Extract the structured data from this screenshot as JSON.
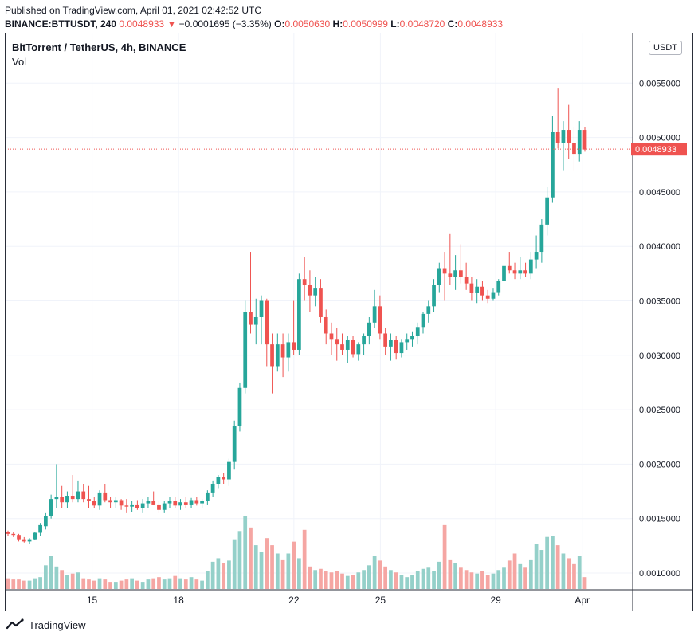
{
  "header": {
    "published": "Published on TradingView.com, April 01, 2021 02:42:52 UTC",
    "symbol": "BINANCE:BTTUSDT, 240",
    "last": "0.0048933",
    "change": "−0.0001695 (−3.35%)",
    "o_label": "O:",
    "o": "0.0050630",
    "h_label": "H:",
    "h": "0.0050999",
    "l_label": "L:",
    "l": "0.0048720",
    "c_label": "C:",
    "c": "0.0048933"
  },
  "pane": {
    "title": "BitTorrent / TetherUS, 4h, BINANCE",
    "volume_label": "Vol",
    "currency_button": "USDT"
  },
  "footer": {
    "brand": "TradingView"
  },
  "colors": {
    "up": "#26a69a",
    "down": "#ef5350",
    "vol_up": "#94d0c9",
    "vol_down": "#f5a6a3",
    "grid": "#f0f3fa"
  },
  "chart_data": {
    "type": "candlestick",
    "title": "BitTorrent / TetherUS, 4h, BINANCE",
    "y_ticks": [
      "0.0010000",
      "0.0015000",
      "0.0020000",
      "0.0025000",
      "0.0030000",
      "0.0035000",
      "0.0040000",
      "0.0045000",
      "0.0050000",
      "0.0055000"
    ],
    "ylim": [
      0.00088,
      0.00578
    ],
    "x_ticks": [
      {
        "label": "15",
        "at": 15
      },
      {
        "label": "18",
        "at": 18
      },
      {
        "label": "22",
        "at": 22
      },
      {
        "label": "25",
        "at": 25
      },
      {
        "label": "29",
        "at": 29
      },
      {
        "label": "Apr",
        "at": 32
      }
    ],
    "x_range": [
      12.0,
      33.75
    ],
    "last_price": "0.0048933",
    "candles": [
      [
        0.00138,
        0.00139,
        0.00134,
        0.00136,
        0.9
      ],
      [
        0.00136,
        0.00138,
        0.00133,
        0.00135,
        0.8
      ],
      [
        0.00135,
        0.00136,
        0.00129,
        0.00131,
        0.8
      ],
      [
        0.00131,
        0.00133,
        0.00128,
        0.00129,
        0.7
      ],
      [
        0.00129,
        0.00132,
        0.00127,
        0.00131,
        0.7
      ],
      [
        0.00131,
        0.00138,
        0.0013,
        0.00137,
        0.9
      ],
      [
        0.00137,
        0.00146,
        0.00134,
        0.00144,
        1.0
      ],
      [
        0.00143,
        0.00155,
        0.0014,
        0.00152,
        2.0
      ],
      [
        0.00152,
        0.00172,
        0.0015,
        0.00168,
        2.8
      ],
      [
        0.00168,
        0.002,
        0.0016,
        0.0017,
        1.9
      ],
      [
        0.0017,
        0.0018,
        0.0016,
        0.00165,
        1.6
      ],
      [
        0.00165,
        0.00175,
        0.0016,
        0.00171,
        1.2
      ],
      [
        0.00171,
        0.0019,
        0.00165,
        0.00168,
        1.3
      ],
      [
        0.00168,
        0.00185,
        0.00165,
        0.00175,
        1.4
      ],
      [
        0.00175,
        0.00182,
        0.00165,
        0.00168,
        0.9
      ],
      [
        0.00168,
        0.0018,
        0.0016,
        0.00166,
        0.8
      ],
      [
        0.00166,
        0.0017,
        0.0016,
        0.00162,
        0.7
      ],
      [
        0.00162,
        0.00176,
        0.00158,
        0.00174,
        0.9
      ],
      [
        0.00174,
        0.00182,
        0.00165,
        0.00167,
        0.8
      ],
      [
        0.00167,
        0.0017,
        0.0016,
        0.00165,
        0.6
      ],
      [
        0.00165,
        0.0017,
        0.0016,
        0.00167,
        0.6
      ],
      [
        0.00167,
        0.00168,
        0.00158,
        0.00162,
        0.7
      ],
      [
        0.00162,
        0.00168,
        0.00155,
        0.00161,
        0.8
      ],
      [
        0.00161,
        0.00166,
        0.00156,
        0.00163,
        0.9
      ],
      [
        0.00163,
        0.00167,
        0.00158,
        0.0016,
        0.7
      ],
      [
        0.0016,
        0.00168,
        0.00155,
        0.00164,
        0.6
      ],
      [
        0.00164,
        0.0017,
        0.0016,
        0.00166,
        0.8
      ],
      [
        0.00166,
        0.00175,
        0.00163,
        0.00163,
        0.9
      ],
      [
        0.00163,
        0.00166,
        0.00155,
        0.00158,
        1.0
      ],
      [
        0.00158,
        0.00166,
        0.00155,
        0.00164,
        0.8
      ],
      [
        0.00164,
        0.0017,
        0.0016,
        0.00166,
        0.9
      ],
      [
        0.00166,
        0.0017,
        0.0016,
        0.00162,
        1.1
      ],
      [
        0.00162,
        0.00168,
        0.00158,
        0.00165,
        0.9
      ],
      [
        0.00165,
        0.0017,
        0.0016,
        0.00163,
        0.8
      ],
      [
        0.00163,
        0.00169,
        0.0016,
        0.00167,
        1.0
      ],
      [
        0.00167,
        0.0017,
        0.00162,
        0.00164,
        0.8
      ],
      [
        0.00164,
        0.00168,
        0.0016,
        0.00166,
        0.7
      ],
      [
        0.00166,
        0.00176,
        0.00163,
        0.00174,
        1.5
      ],
      [
        0.00174,
        0.00185,
        0.0017,
        0.00182,
        2.3
      ],
      [
        0.00182,
        0.0019,
        0.00178,
        0.00188,
        2.6
      ],
      [
        0.00188,
        0.00192,
        0.00182,
        0.00186,
        2.2
      ],
      [
        0.00186,
        0.00205,
        0.0018,
        0.00202,
        2.4
      ],
      [
        0.00202,
        0.0024,
        0.00195,
        0.00235,
        4.2
      ],
      [
        0.00235,
        0.00275,
        0.0023,
        0.0027,
        4.9
      ],
      [
        0.0027,
        0.0035,
        0.00265,
        0.0034,
        6.2
      ],
      [
        0.0034,
        0.00395,
        0.0032,
        0.00328,
        5.2
      ],
      [
        0.00328,
        0.00352,
        0.0031,
        0.00335,
        3.7
      ],
      [
        0.00335,
        0.00355,
        0.0031,
        0.0035,
        3.1
      ],
      [
        0.0035,
        0.00352,
        0.0029,
        0.0031,
        4.3
      ],
      [
        0.0031,
        0.0032,
        0.00265,
        0.0029,
        3.7
      ],
      [
        0.0029,
        0.0032,
        0.00285,
        0.0031,
        3.0
      ],
      [
        0.0031,
        0.0032,
        0.0028,
        0.00298,
        2.5
      ],
      [
        0.00298,
        0.0032,
        0.00285,
        0.00312,
        3.0
      ],
      [
        0.00312,
        0.0035,
        0.003,
        0.00305,
        4.0
      ],
      [
        0.00305,
        0.00375,
        0.003,
        0.0037,
        2.6
      ],
      [
        0.0037,
        0.0039,
        0.0035,
        0.00365,
        5.0
      ],
      [
        0.00365,
        0.00378,
        0.0034,
        0.00355,
        1.9
      ],
      [
        0.00355,
        0.00372,
        0.00345,
        0.00362,
        1.6
      ],
      [
        0.00362,
        0.0037,
        0.0033,
        0.00335,
        1.7
      ],
      [
        0.00335,
        0.00342,
        0.0031,
        0.0032,
        1.5
      ],
      [
        0.0032,
        0.0033,
        0.003,
        0.00315,
        1.4
      ],
      [
        0.00315,
        0.00325,
        0.00295,
        0.0031,
        1.5
      ],
      [
        0.0031,
        0.0032,
        0.003,
        0.00305,
        1.3
      ],
      [
        0.00305,
        0.00318,
        0.00293,
        0.00314,
        1.1
      ],
      [
        0.00314,
        0.00318,
        0.00298,
        0.00301,
        1.2
      ],
      [
        0.00301,
        0.00312,
        0.00295,
        0.0031,
        1.4
      ],
      [
        0.0031,
        0.0032,
        0.003,
        0.00318,
        1.6
      ],
      [
        0.00318,
        0.00335,
        0.0031,
        0.0033,
        2.0
      ],
      [
        0.0033,
        0.0036,
        0.00325,
        0.00345,
        2.8
      ],
      [
        0.00345,
        0.00355,
        0.00315,
        0.0032,
        2.4
      ],
      [
        0.0032,
        0.00325,
        0.003,
        0.00308,
        1.9
      ],
      [
        0.00308,
        0.0032,
        0.00295,
        0.00314,
        1.6
      ],
      [
        0.00314,
        0.00318,
        0.00296,
        0.00302,
        1.4
      ],
      [
        0.00302,
        0.00315,
        0.00298,
        0.00312,
        1.2
      ],
      [
        0.00312,
        0.0032,
        0.00305,
        0.00315,
        1.0
      ],
      [
        0.00315,
        0.00322,
        0.00308,
        0.00318,
        1.2
      ],
      [
        0.00318,
        0.0033,
        0.0031,
        0.00326,
        1.5
      ],
      [
        0.00326,
        0.0034,
        0.0032,
        0.00338,
        1.7
      ],
      [
        0.00338,
        0.0035,
        0.0033,
        0.00345,
        1.8
      ],
      [
        0.00345,
        0.0037,
        0.0034,
        0.00365,
        1.5
      ],
      [
        0.00365,
        0.00385,
        0.00358,
        0.0038,
        2.3
      ],
      [
        0.0038,
        0.00395,
        0.0035,
        0.00375,
        5.4
      ],
      [
        0.00375,
        0.00412,
        0.00365,
        0.00372,
        2.5
      ],
      [
        0.00372,
        0.00392,
        0.0036,
        0.00378,
        2.2
      ],
      [
        0.00378,
        0.00402,
        0.00366,
        0.00372,
        1.8
      ],
      [
        0.00372,
        0.00385,
        0.0036,
        0.00366,
        1.6
      ],
      [
        0.00366,
        0.00372,
        0.0035,
        0.00357,
        1.4
      ],
      [
        0.00357,
        0.0037,
        0.00348,
        0.00363,
        1.3
      ],
      [
        0.00363,
        0.00368,
        0.0035,
        0.00355,
        1.5
      ],
      [
        0.00355,
        0.0036,
        0.00348,
        0.00352,
        1.2
      ],
      [
        0.00352,
        0.00362,
        0.0035,
        0.00358,
        1.3
      ],
      [
        0.00358,
        0.0037,
        0.00355,
        0.00368,
        1.6
      ],
      [
        0.00368,
        0.00385,
        0.00365,
        0.00382,
        1.8
      ],
      [
        0.00382,
        0.00395,
        0.00375,
        0.00378,
        2.4
      ],
      [
        0.00378,
        0.00385,
        0.0037,
        0.00375,
        3.0
      ],
      [
        0.00375,
        0.0039,
        0.0037,
        0.00378,
        2.1
      ],
      [
        0.00378,
        0.00385,
        0.00372,
        0.00375,
        1.8
      ],
      [
        0.00375,
        0.00395,
        0.0037,
        0.00388,
        2.5
      ],
      [
        0.00388,
        0.0041,
        0.0038,
        0.00395,
        3.8
      ],
      [
        0.00395,
        0.00425,
        0.00385,
        0.0042,
        3.3
      ],
      [
        0.0042,
        0.00455,
        0.0041,
        0.00445,
        4.4
      ],
      [
        0.00445,
        0.0052,
        0.0044,
        0.00505,
        4.5
      ],
      [
        0.00505,
        0.00545,
        0.0049,
        0.00495,
        3.7
      ],
      [
        0.00495,
        0.00515,
        0.0047,
        0.00507,
        3.0
      ],
      [
        0.00507,
        0.0053,
        0.0048,
        0.00495,
        2.6
      ],
      [
        0.00495,
        0.0051,
        0.0047,
        0.00485,
        2.1
      ],
      [
        0.00485,
        0.00515,
        0.00478,
        0.00507,
        2.8
      ],
      [
        0.00507,
        0.0051,
        0.00487,
        0.00489,
        1.0
      ]
    ]
  }
}
